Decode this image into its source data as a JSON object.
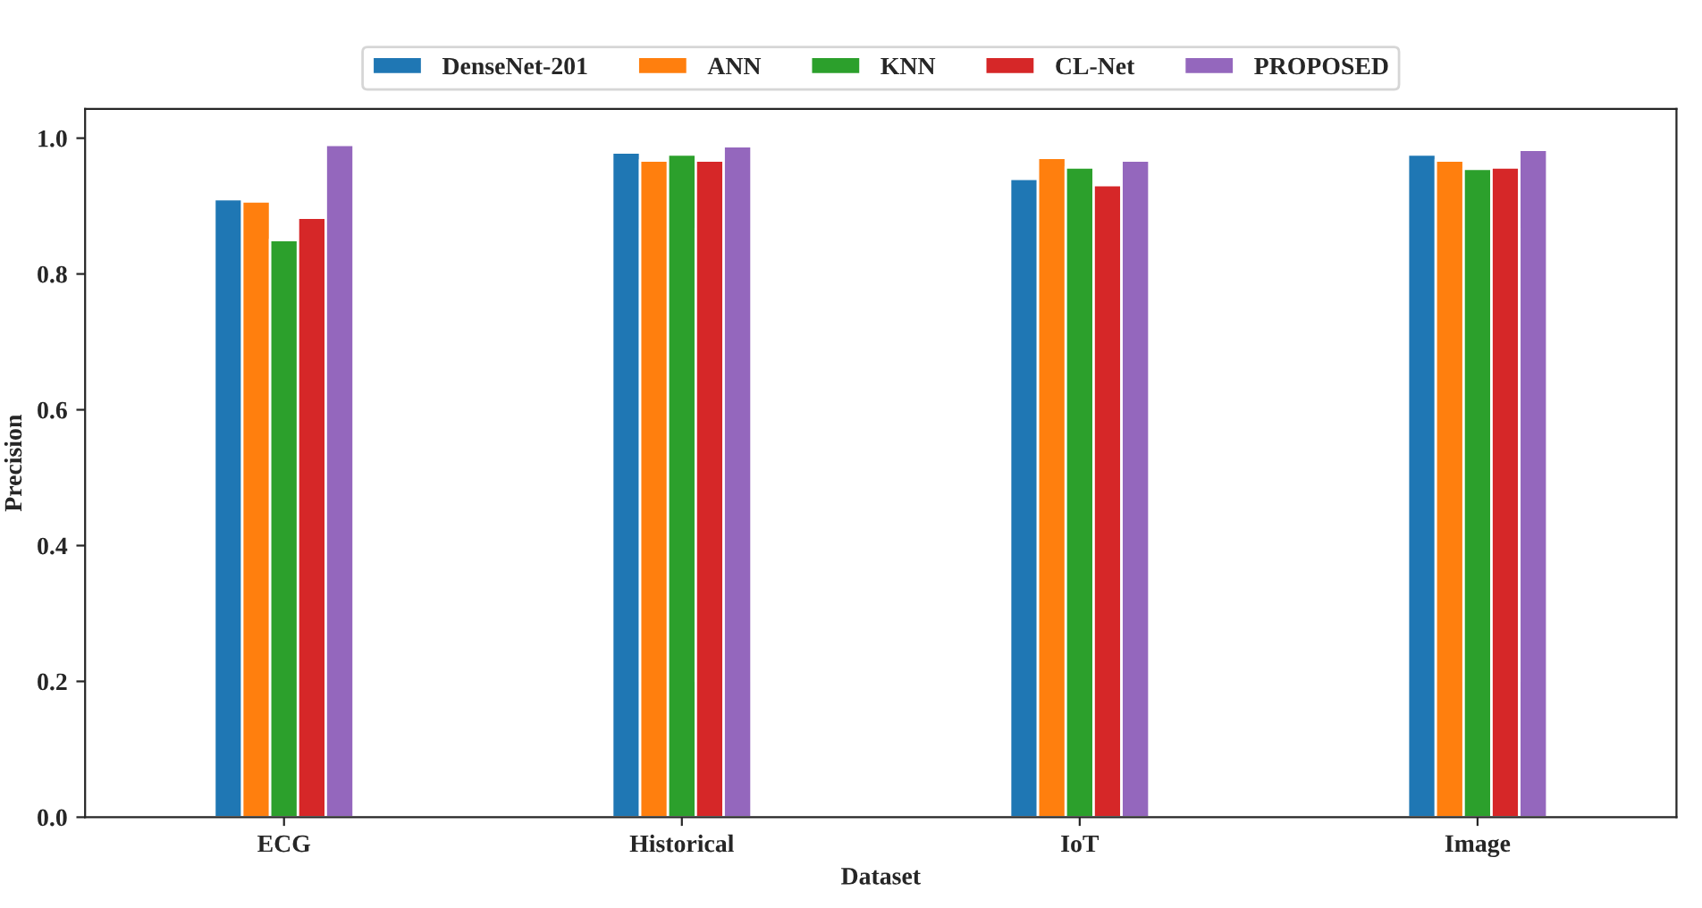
{
  "chart_data": {
    "type": "bar",
    "xlabel": "Dataset",
    "ylabel": "Precision",
    "categories": [
      "ECG",
      "Historical",
      "IoT",
      "Image"
    ],
    "series": [
      {
        "name": "DenseNet-201",
        "color": "#1f77b4",
        "values": [
          0.91,
          0.979,
          0.94,
          0.976
        ]
      },
      {
        "name": "ANN",
        "color": "#ff7f0e",
        "values": [
          0.907,
          0.967,
          0.971,
          0.967
        ]
      },
      {
        "name": "KNN",
        "color": "#2ca02c",
        "values": [
          0.85,
          0.976,
          0.957,
          0.955
        ]
      },
      {
        "name": "CL-Net",
        "color": "#d62728",
        "values": [
          0.883,
          0.967,
          0.931,
          0.957
        ]
      },
      {
        "name": "PROPOSED",
        "color": "#9467bd",
        "values": [
          0.99,
          0.988,
          0.967,
          0.983
        ]
      }
    ],
    "ylim": [
      0,
      1.043
    ],
    "yticks": [
      {
        "value": 0,
        "label": "0.0"
      },
      {
        "value": 0.2,
        "label": "0.2"
      },
      {
        "value": 0.4,
        "label": "0.4"
      },
      {
        "value": 0.6,
        "label": "0.6"
      },
      {
        "value": 0.8,
        "label": "0.8"
      },
      {
        "value": 1.0,
        "label": "1.0"
      }
    ],
    "grid": false,
    "legend": "top"
  }
}
